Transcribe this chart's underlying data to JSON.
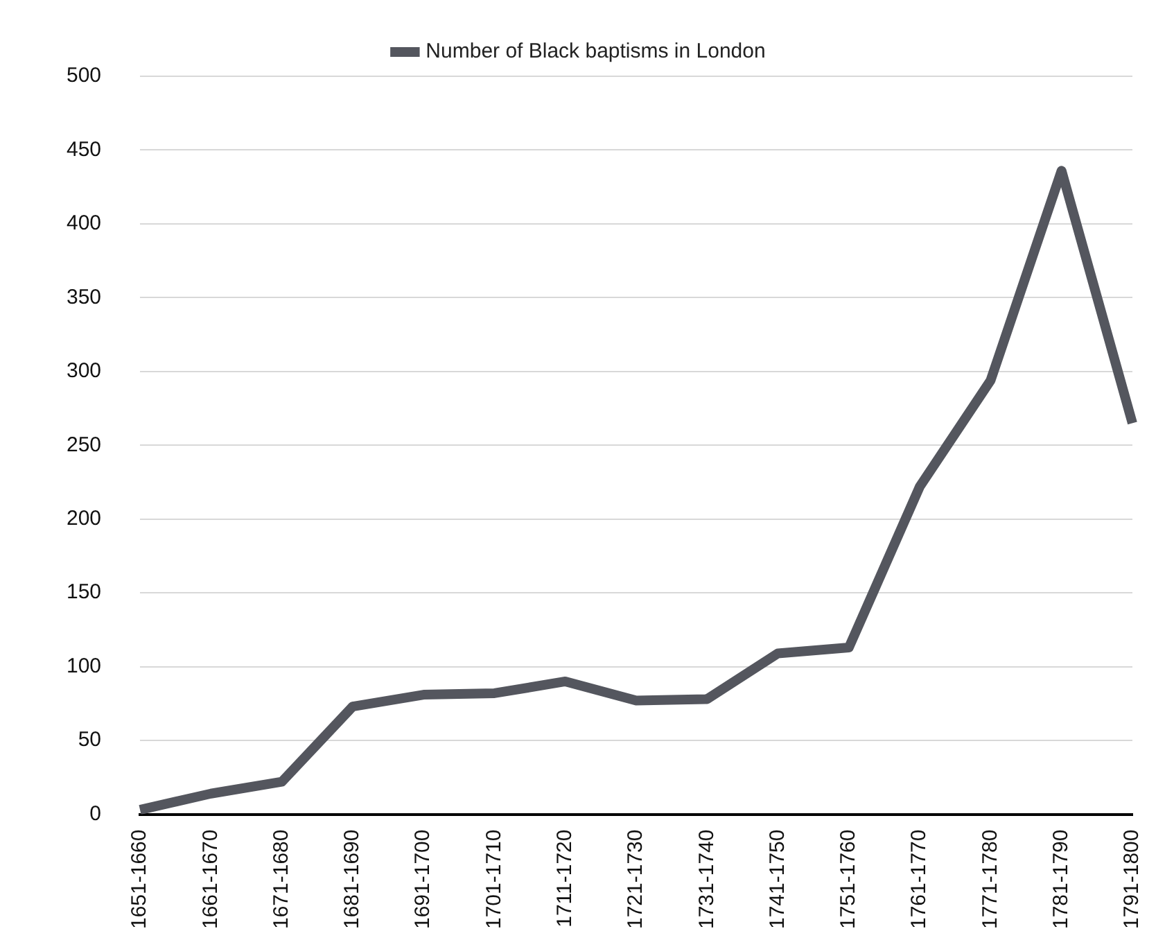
{
  "chart_data": {
    "type": "line",
    "categories": [
      "1651-1660",
      "1661-1670",
      "1671-1680",
      "1681-1690",
      "1691-1700",
      "1701-1710",
      "1711-1720",
      "1721-1730",
      "1731-1740",
      "1741-1750",
      "1751-1760",
      "1761-1770",
      "1771-1780",
      "1781-1790",
      "1791-1800"
    ],
    "series": [
      {
        "name": "Number of Black baptisms in London",
        "color": "#54565e",
        "values": [
          3,
          14,
          22,
          73,
          81,
          82,
          90,
          77,
          78,
          109,
          113,
          222,
          294,
          436,
          265
        ]
      }
    ],
    "ylim": [
      0,
      500
    ],
    "yticks": [
      0,
      50,
      100,
      150,
      200,
      250,
      300,
      350,
      400,
      450,
      500
    ],
    "grid": "y",
    "legend": "top",
    "marker": "none",
    "line_style": "solid"
  }
}
